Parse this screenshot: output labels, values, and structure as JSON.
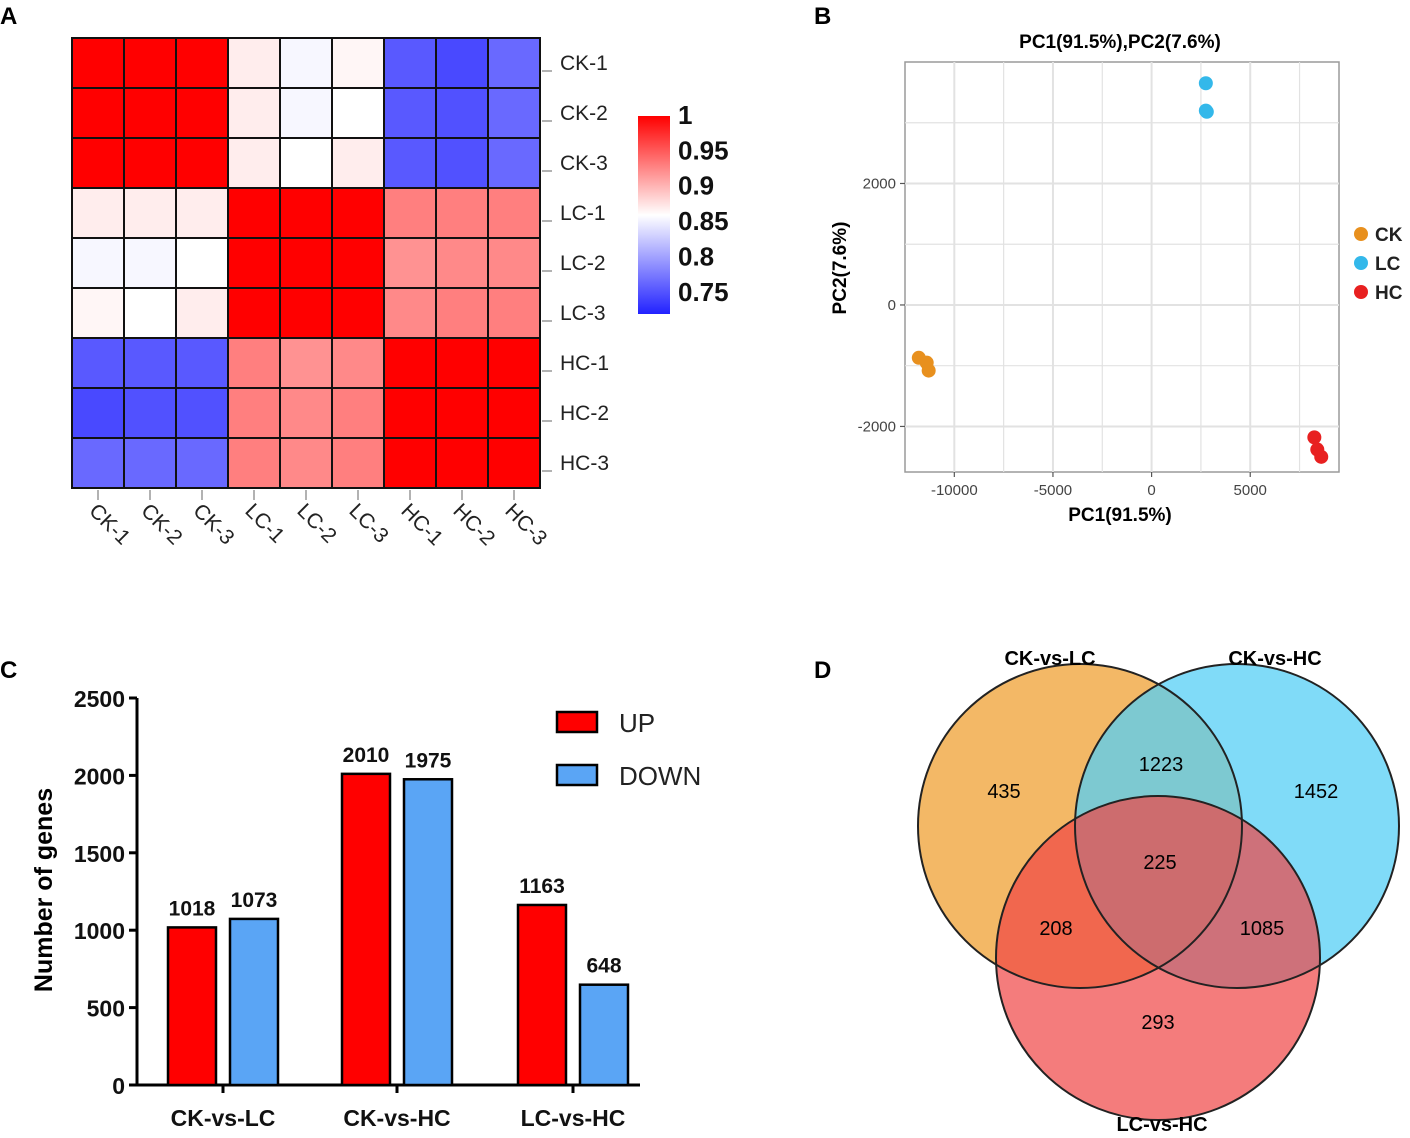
{
  "panel_letters": [
    "A",
    "B",
    "C",
    "D"
  ],
  "colors": {
    "red": "#ff0000",
    "blue": "#2222ff",
    "white": "#ffffff",
    "up": "#ff0000",
    "down": "#5aa5f5",
    "ck": "#e8901e",
    "lc": "#33b8ea",
    "hc": "#e82020",
    "venn_a": "#f0a640",
    "venn_b": "#55cff5",
    "venn_c": "#ef4444"
  },
  "chart_data": [
    {
      "type": "heatmap",
      "panel": "A",
      "rows": [
        "CK-1",
        "CK-2",
        "CK-3",
        "LC-1",
        "LC-2",
        "LC-3",
        "HC-1",
        "HC-2",
        "HC-3"
      ],
      "cols": [
        "CK-1",
        "CK-2",
        "CK-3",
        "LC-1",
        "LC-2",
        "LC-3",
        "HC-1",
        "HC-2",
        "HC-3"
      ],
      "values": [
        [
          1.0,
          1.0,
          1.0,
          0.87,
          0.855,
          0.865,
          0.755,
          0.745,
          0.765
        ],
        [
          1.0,
          1.0,
          1.0,
          0.87,
          0.855,
          0.86,
          0.755,
          0.75,
          0.765
        ],
        [
          1.0,
          1.0,
          1.0,
          0.87,
          0.86,
          0.87,
          0.755,
          0.75,
          0.765
        ],
        [
          0.87,
          0.87,
          0.87,
          1.0,
          1.0,
          1.0,
          0.93,
          0.93,
          0.93
        ],
        [
          0.855,
          0.855,
          0.86,
          1.0,
          1.0,
          1.0,
          0.92,
          0.925,
          0.925
        ],
        [
          0.865,
          0.86,
          0.87,
          1.0,
          1.0,
          1.0,
          0.925,
          0.93,
          0.93
        ],
        [
          0.755,
          0.755,
          0.755,
          0.93,
          0.92,
          0.925,
          1.0,
          1.0,
          1.0
        ],
        [
          0.745,
          0.75,
          0.75,
          0.93,
          0.925,
          0.93,
          1.0,
          1.0,
          1.0
        ],
        [
          0.765,
          0.765,
          0.765,
          0.93,
          0.925,
          0.93,
          1.0,
          1.0,
          1.0
        ]
      ],
      "color_range": [
        0.72,
        1
      ],
      "colorbar_ticks": [
        "1",
        "0.95",
        "0.9",
        "0.85",
        "0.8",
        "0.75"
      ],
      "colorbar_tick_values": [
        1,
        0.95,
        0.9,
        0.85,
        0.8,
        0.75
      ]
    },
    {
      "type": "scatter",
      "panel": "B",
      "title": "PC1(91.5%),PC2(7.6%)",
      "xlabel": "PC1(91.5%)",
      "ylabel": "PC2(7.6%)",
      "xlim": [
        -12500,
        9500
      ],
      "ylim": [
        -2750,
        4000
      ],
      "x_ticks": [
        -10000,
        -5000,
        0,
        5000
      ],
      "y_ticks": [
        -2000,
        0,
        2000
      ],
      "x_tick_labels": [
        "-10000",
        "-5000",
        "0",
        "5000"
      ],
      "y_tick_labels": [
        "-2000",
        "0",
        "2000"
      ],
      "grid": true,
      "series": [
        {
          "name": "CK",
          "points": [
            [
              -11800,
              -870
            ],
            [
              -11400,
              -950
            ],
            [
              -11300,
              -1080
            ]
          ]
        },
        {
          "name": "LC",
          "points": [
            [
              2750,
              3650
            ],
            [
              2750,
              3200
            ],
            [
              2800,
              3180
            ]
          ]
        },
        {
          "name": "HC",
          "points": [
            [
              8250,
              -2180
            ],
            [
              8400,
              -2380
            ],
            [
              8600,
              -2500
            ]
          ]
        }
      ],
      "legend": "right"
    },
    {
      "type": "bar",
      "panel": "C",
      "categories": [
        "CK-vs-LC",
        "CK-vs-HC",
        "LC-vs-HC"
      ],
      "series": [
        {
          "name": "UP",
          "values": [
            1018,
            2010,
            1163
          ]
        },
        {
          "name": "DOWN",
          "values": [
            1073,
            1975,
            648
          ]
        }
      ],
      "data_labels": [
        [
          "1018",
          "1073"
        ],
        [
          "2010",
          "1975"
        ],
        [
          "1163",
          "648"
        ]
      ],
      "ylabel": "Number of genes",
      "ylim": [
        0,
        2500
      ],
      "y_ticks": [
        0,
        500,
        1000,
        1500,
        2000,
        2500
      ],
      "y_tick_labels": [
        "0",
        "500",
        "1000",
        "1500",
        "2000",
        "2500"
      ],
      "legend": "top-right"
    },
    {
      "type": "venn",
      "panel": "D",
      "sets": [
        "CK-vs-LC",
        "CK-vs-HC",
        "LC-vs-HC"
      ],
      "regions": {
        "a_only": "435",
        "b_only": "1452",
        "c_only": "293",
        "ab": "1223",
        "ac": "208",
        "bc": "1085",
        "abc": "225"
      }
    }
  ]
}
